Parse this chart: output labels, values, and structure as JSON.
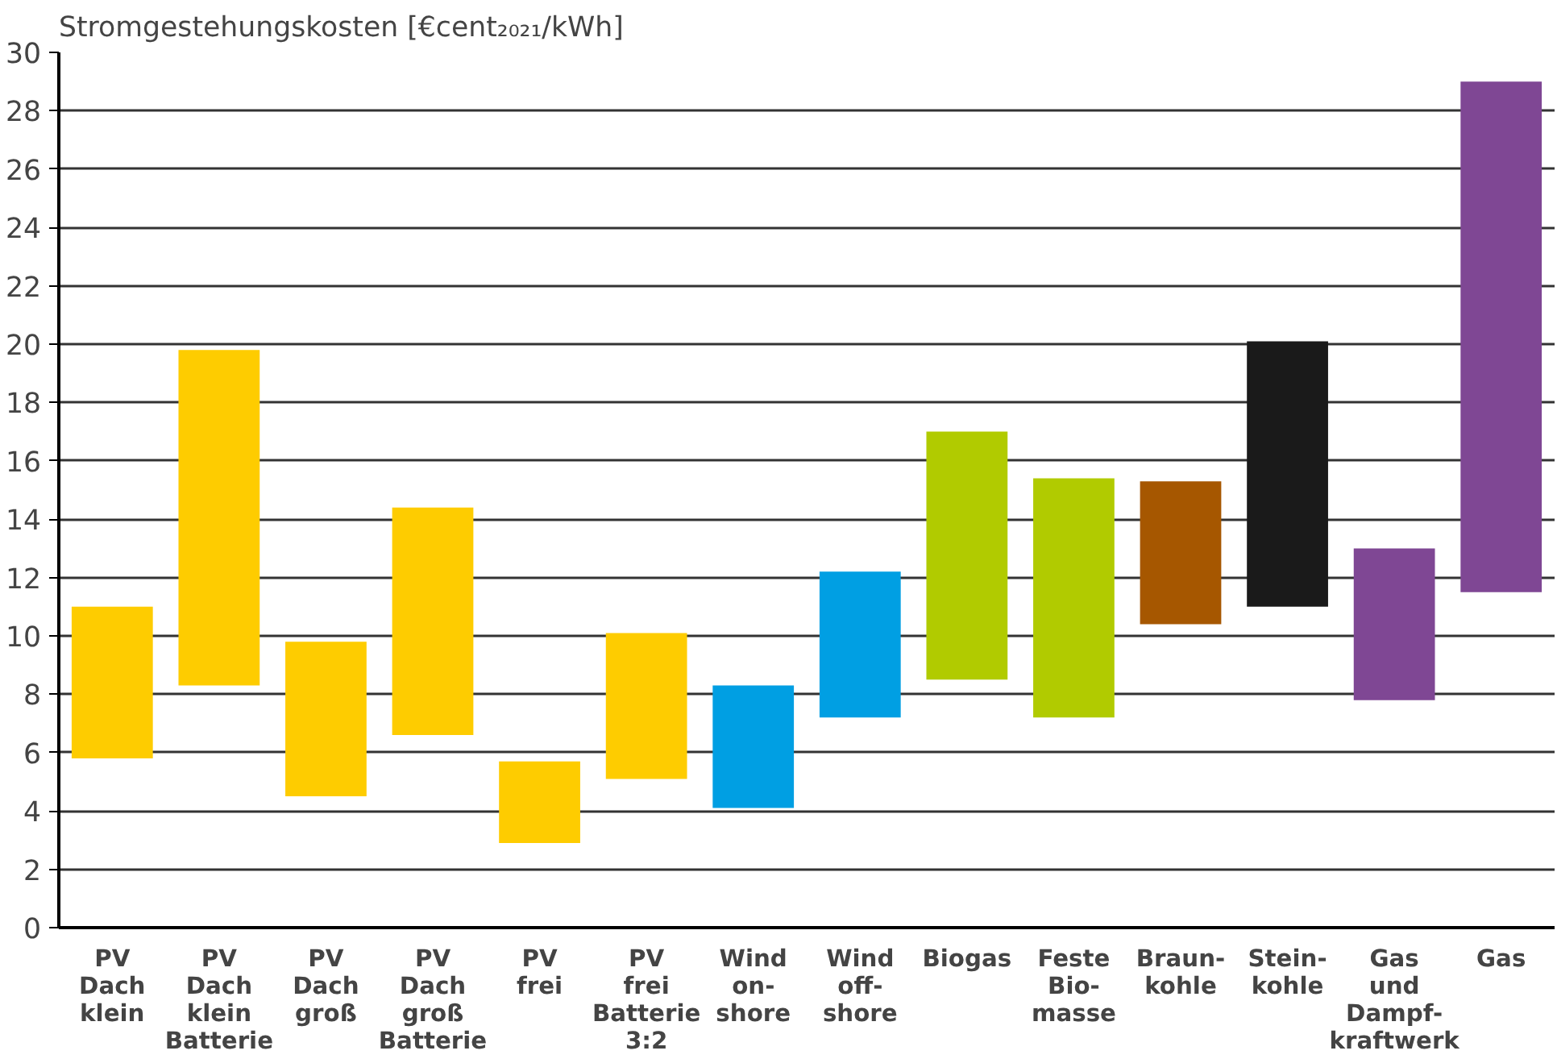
{
  "chart_data": {
    "type": "bar",
    "ylabel": "Stromgestehungskosten [€cent₂₀₂₁/kWh]",
    "categories": [
      "PV\nDach\nklein",
      "PV\nDach\nklein\nBatterie",
      "PV\nDach\ngroß",
      "PV\nDach\ngroß\nBatterie",
      "PV\nfrei",
      "PV\nfrei\nBatterie\n3:2",
      "Wind\non-\nshore",
      "Wind\noff-\nshore",
      "Biogas",
      "Feste\nBio-\nmasse",
      "Braun-\nkohle",
      "Stein-\nkohle",
      "Gas\nund\nDampf-\nkraftwerk",
      "Gas"
    ],
    "base": [
      5.8,
      8.3,
      4.5,
      6.6,
      2.9,
      5.1,
      4.1,
      7.2,
      8.5,
      7.2,
      10.4,
      11.0,
      7.8,
      11.5
    ],
    "values": [
      5.2,
      11.5,
      5.3,
      7.8,
      2.8,
      5.0,
      4.2,
      5.0,
      8.5,
      8.2,
      4.9,
      9.1,
      5.2,
      17.5
    ],
    "colors": [
      "#fecc00",
      "#fecc00",
      "#fecc00",
      "#fecc00",
      "#fecc00",
      "#fecc00",
      "#009fe3",
      "#009fe3",
      "#b1cb00",
      "#b1cb00",
      "#a65700",
      "#1a1a1a",
      "#7f4794",
      "#7f4794"
    ],
    "ylim": [
      0,
      30
    ],
    "yticks": [
      0,
      2,
      4,
      6,
      8,
      10,
      12,
      14,
      16,
      18,
      20,
      22,
      24,
      26,
      28,
      30
    ],
    "grid": "y"
  }
}
